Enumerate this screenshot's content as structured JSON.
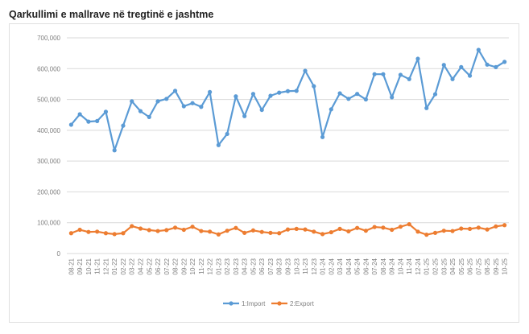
{
  "title": "Qarkullimi e mallrave në tregtinë e jashtme",
  "chart_data": {
    "type": "line",
    "title": "Qarkullimi e mallrave në tregtinë e jashtme",
    "xlabel": "",
    "ylabel": "",
    "ylim": [
      0,
      700000
    ],
    "yticks": [
      "0",
      "100,000",
      "200,000",
      "300,000",
      "400,000",
      "500,000",
      "600,000",
      "700,000"
    ],
    "grid": true,
    "legend_position": "bottom",
    "categories": [
      "08-21",
      "09-21",
      "10-21",
      "11-21",
      "12-21",
      "01-22",
      "02-22",
      "03-22",
      "04-22",
      "05-22",
      "06-22",
      "07-22",
      "08-22",
      "09-22",
      "10-22",
      "11-22",
      "12-22",
      "01-23",
      "02-23",
      "03-23",
      "04-23",
      "05-23",
      "06-23",
      "07-23",
      "08-23",
      "09-23",
      "10-23",
      "11-23",
      "12-23",
      "01-24",
      "02-24",
      "03-24",
      "04-24",
      "05-24",
      "06-24",
      "07-24",
      "08-24",
      "09-24",
      "10-24",
      "11-24",
      "12-24",
      "01-25",
      "02-25",
      "03-25",
      "04-25",
      "05-25",
      "06-25",
      "07-25",
      "08-25",
      "09-25",
      "10-25"
    ],
    "series": [
      {
        "name": "1:Import",
        "color": "#5b9bd5",
        "values": [
          418000,
          452000,
          428000,
          430000,
          460000,
          335000,
          415000,
          494000,
          462000,
          443000,
          494000,
          502000,
          528000,
          478000,
          488000,
          476000,
          524000,
          352000,
          388000,
          510000,
          446000,
          518000,
          466000,
          512000,
          522000,
          527000,
          528000,
          593000,
          543000,
          378000,
          468000,
          520000,
          502000,
          518000,
          500000,
          582000,
          582000,
          507000,
          580000,
          566000,
          632000,
          472000,
          517000,
          612000,
          566000,
          605000,
          577000,
          661000,
          613000,
          605000,
          622000
        ]
      },
      {
        "name": "2:Export",
        "color": "#ed7d31",
        "values": [
          66000,
          77000,
          70000,
          71000,
          66000,
          63000,
          66000,
          89000,
          81000,
          76000,
          73000,
          76000,
          84000,
          77000,
          87000,
          73000,
          71000,
          62000,
          74000,
          83000,
          67000,
          75000,
          70000,
          67000,
          66000,
          78000,
          80000,
          78000,
          71000,
          63000,
          69000,
          80000,
          72000,
          83000,
          74000,
          86000,
          84000,
          77000,
          87000,
          95000,
          71000,
          61000,
          67000,
          74000,
          73000,
          81000,
          80000,
          84000,
          78000,
          88000,
          92000
        ]
      }
    ]
  }
}
